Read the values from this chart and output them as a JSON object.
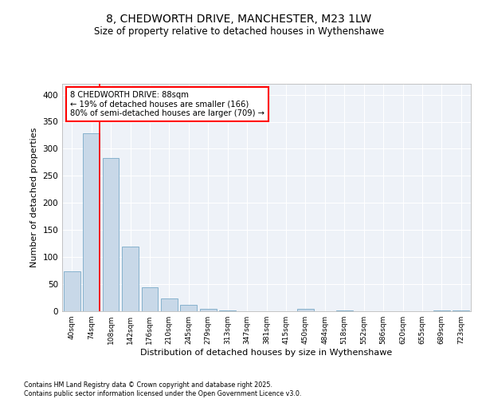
{
  "title1": "8, CHEDWORTH DRIVE, MANCHESTER, M23 1LW",
  "title2": "Size of property relative to detached houses in Wythenshawe",
  "xlabel": "Distribution of detached houses by size in Wythenshawe",
  "ylabel": "Number of detached properties",
  "categories": [
    "40sqm",
    "74sqm",
    "108sqm",
    "142sqm",
    "176sqm",
    "210sqm",
    "245sqm",
    "279sqm",
    "313sqm",
    "347sqm",
    "381sqm",
    "415sqm",
    "450sqm",
    "484sqm",
    "518sqm",
    "552sqm",
    "586sqm",
    "620sqm",
    "655sqm",
    "689sqm",
    "723sqm"
  ],
  "values": [
    73,
    328,
    283,
    120,
    44,
    23,
    12,
    4,
    1,
    0,
    0,
    0,
    5,
    0,
    2,
    0,
    0,
    0,
    0,
    2,
    2
  ],
  "bar_color": "#c8d8e8",
  "bar_edge_color": "#7aaac8",
  "annotation_line1": "8 CHEDWORTH DRIVE: 88sqm",
  "annotation_line2": "← 19% of detached houses are smaller (166)",
  "annotation_line3": "80% of semi-detached houses are larger (709) →",
  "ylim": [
    0,
    420
  ],
  "yticks": [
    0,
    50,
    100,
    150,
    200,
    250,
    300,
    350,
    400
  ],
  "background_color": "#eef2f8",
  "footer1": "Contains HM Land Registry data © Crown copyright and database right 2025.",
  "footer2": "Contains public sector information licensed under the Open Government Licence v3.0."
}
